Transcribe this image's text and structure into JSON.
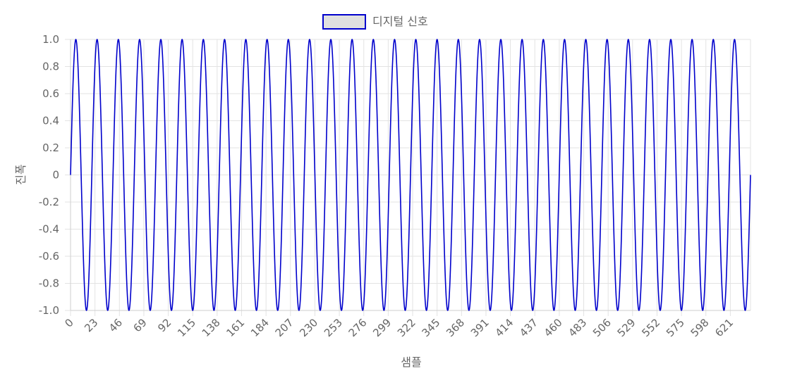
{
  "chart_data": {
    "type": "line",
    "title": "",
    "xlabel": "샘플",
    "ylabel": "진폭",
    "ylim": [
      -1.0,
      1.0
    ],
    "y_ticks": [
      "1.0",
      "0.8",
      "0.6",
      "0.4",
      "0.2",
      "0",
      "-0.2",
      "-0.4",
      "-0.6",
      "-0.8",
      "-1.0"
    ],
    "x_tick_labels": [
      "0",
      "23",
      "46",
      "69",
      "92",
      "115",
      "138",
      "161",
      "184",
      "207",
      "230",
      "253",
      "276",
      "299",
      "322",
      "345",
      "368",
      "391",
      "414",
      "437",
      "460",
      "483",
      "506",
      "529",
      "552",
      "575",
      "598",
      "621"
    ],
    "x_range": [
      0,
      640
    ],
    "grid": true,
    "legend_position": "top-center",
    "series": [
      {
        "name": "디지털 신호",
        "color": "#0000cc",
        "legend_fill": "#e0e0e0",
        "function": "sine",
        "amplitude": 1.0,
        "period_samples": 20,
        "phase": 0
      }
    ]
  }
}
